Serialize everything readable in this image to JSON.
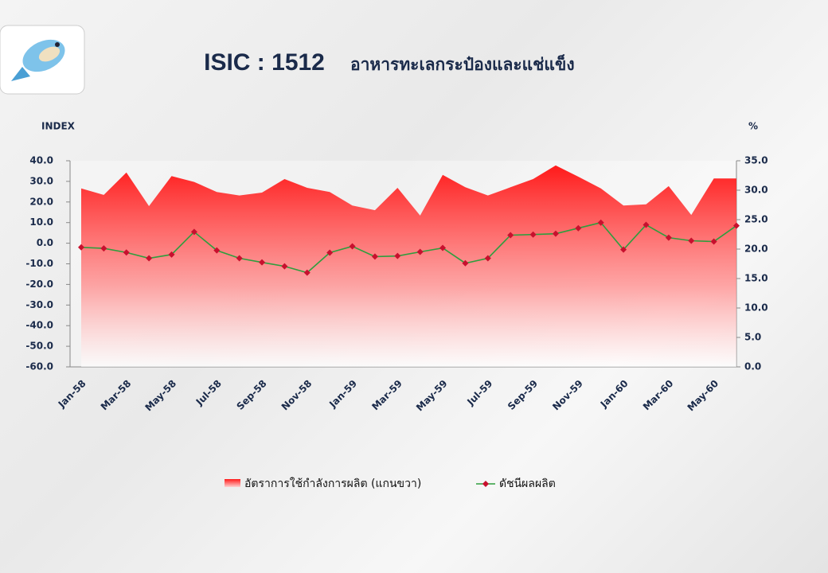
{
  "chart_data": {
    "type": "area-line",
    "title": "ISIC : 1512",
    "subtitle": "อาหารทะเลกระป๋องและแช่แข็ง",
    "y_label": "INDEX",
    "y2_label": "%",
    "categories": [
      "Jan-58",
      null,
      "Mar-58",
      null,
      "May-58",
      null,
      "Jul-58",
      null,
      "Sep-58",
      null,
      "Nov-58",
      null,
      "Jan-59",
      null,
      "Mar-59",
      null,
      "May-59",
      null,
      "Jul-59",
      null,
      "Sep-59",
      null,
      "Nov-59",
      null,
      "Jan-60",
      null,
      "Mar-60",
      null,
      "May-60",
      null
    ],
    "series": [
      {
        "name": "อัตราการใช้กำลังการผลิต (แกนขวา)",
        "type": "area",
        "axis": "y2",
        "color": "#ff1a1a",
        "values": [
          30.3,
          29.2,
          33.0,
          27.3,
          32.4,
          31.4,
          29.7,
          29.1,
          29.6,
          31.9,
          30.4,
          29.7,
          27.4,
          26.6,
          30.4,
          25.7,
          32.6,
          30.5,
          29.1,
          30.5,
          31.9,
          34.2,
          32.3,
          30.3,
          27.4,
          27.6,
          30.7,
          25.8,
          32.0,
          32.0
        ]
      },
      {
        "name": "ดัชนีผลผลิต",
        "type": "line",
        "color": "#2e9e3e",
        "marker_color": "#c8102e",
        "values": [
          -2.0,
          -2.5,
          -4.5,
          -7.3,
          -5.5,
          5.5,
          -3.5,
          -7.3,
          -9.3,
          -11.2,
          -14.3,
          -4.6,
          -1.5,
          -6.5,
          -6.2,
          -4.2,
          -2.3,
          -9.7,
          -7.3,
          3.9,
          4.2,
          4.6,
          7.3,
          10.0,
          -3.1,
          8.9,
          2.7,
          1.2,
          0.8,
          8.5
        ]
      }
    ],
    "ylim": [
      -60,
      40
    ],
    "yticks": [
      {
        "value": -60,
        "label": "-60.0"
      },
      {
        "value": -50,
        "label": "-50.0"
      },
      {
        "value": -40,
        "label": "-40.0"
      },
      {
        "value": -30,
        "label": "-30.0"
      },
      {
        "value": -20,
        "label": "-20.0"
      },
      {
        "value": -10,
        "label": "-10.0"
      },
      {
        "value": 0,
        "label": "0.0"
      },
      {
        "value": 10,
        "label": "10.0"
      },
      {
        "value": 20,
        "label": "20.0"
      },
      {
        "value": 30,
        "label": "30.0"
      },
      {
        "value": 40,
        "label": "40.0"
      }
    ],
    "y2lim": [
      0,
      35
    ],
    "y2ticks": [
      {
        "value": 0,
        "label": "0.0"
      },
      {
        "value": 5,
        "label": "5.0"
      },
      {
        "value": 10,
        "label": "10.0"
      },
      {
        "value": 15,
        "label": "15.0"
      },
      {
        "value": 20,
        "label": "20.0"
      },
      {
        "value": 25,
        "label": "25.0"
      },
      {
        "value": 30,
        "label": "30.0"
      },
      {
        "value": 35,
        "label": "35.0"
      }
    ],
    "grid": false,
    "legend": "bottom"
  }
}
